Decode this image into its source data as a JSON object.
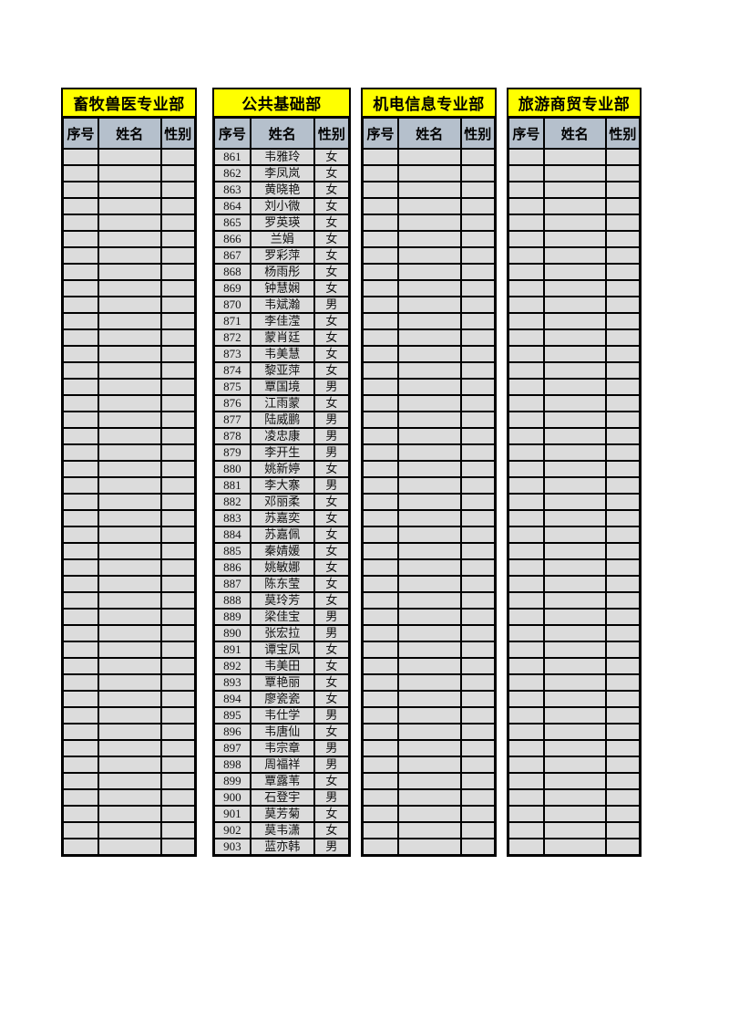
{
  "page": {
    "background": "#FFFFFF",
    "description_colors": {
      "title_bg": "#FFFF00",
      "header_bg": "#B5C0CC",
      "cell_bg": "#DCDCDC",
      "border": "#000000"
    }
  },
  "columns": [
    "序号",
    "姓名",
    "性别"
  ],
  "visible_row_slots": 43,
  "departments": [
    {
      "title": "畜牧兽医专业部",
      "rows": []
    },
    {
      "title": "公共基础部",
      "rows": [
        [
          "861",
          "韦雅玲",
          "女"
        ],
        [
          "862",
          "李凤岚",
          "女"
        ],
        [
          "863",
          "黄晓艳",
          "女"
        ],
        [
          "864",
          "刘小微",
          "女"
        ],
        [
          "865",
          "罗英瑛",
          "女"
        ],
        [
          "866",
          "兰娟",
          "女"
        ],
        [
          "867",
          "罗彩萍",
          "女"
        ],
        [
          "868",
          "杨雨彤",
          "女"
        ],
        [
          "869",
          "钟慧娴",
          "女"
        ],
        [
          "870",
          "韦斌瀚",
          "男"
        ],
        [
          "871",
          "李佳滢",
          "女"
        ],
        [
          "872",
          "蒙肖廷",
          "女"
        ],
        [
          "873",
          "韦美慧",
          "女"
        ],
        [
          "874",
          "黎亚萍",
          "女"
        ],
        [
          "875",
          "覃国境",
          "男"
        ],
        [
          "876",
          "江雨蒙",
          "女"
        ],
        [
          "877",
          "陆威鹏",
          "男"
        ],
        [
          "878",
          "凌忠康",
          "男"
        ],
        [
          "879",
          "李开生",
          "男"
        ],
        [
          "880",
          "姚新婷",
          "女"
        ],
        [
          "881",
          "李大寨",
          "男"
        ],
        [
          "882",
          "邓丽柔",
          "女"
        ],
        [
          "883",
          "苏嘉奕",
          "女"
        ],
        [
          "884",
          "苏嘉佩",
          "女"
        ],
        [
          "885",
          "秦婧媛",
          "女"
        ],
        [
          "886",
          "姚敏娜",
          "女"
        ],
        [
          "887",
          "陈东莹",
          "女"
        ],
        [
          "888",
          "莫玲芳",
          "女"
        ],
        [
          "889",
          "梁佳宝",
          "男"
        ],
        [
          "890",
          "张宏拉",
          "男"
        ],
        [
          "891",
          "谭宝凤",
          "女"
        ],
        [
          "892",
          "韦美田",
          "女"
        ],
        [
          "893",
          "覃艳丽",
          "女"
        ],
        [
          "894",
          "廖瓷瓷",
          "女"
        ],
        [
          "895",
          "韦仕学",
          "男"
        ],
        [
          "896",
          "韦唐仙",
          "女"
        ],
        [
          "897",
          "韦宗章",
          "男"
        ],
        [
          "898",
          "周福祥",
          "男"
        ],
        [
          "899",
          "覃露苇",
          "女"
        ],
        [
          "900",
          "石登宇",
          "男"
        ],
        [
          "901",
          "莫芳菊",
          "女"
        ],
        [
          "902",
          "莫韦潇",
          "女"
        ],
        [
          "903",
          "蓝亦韩",
          "男"
        ]
      ]
    },
    {
      "title": "机电信息专业部",
      "rows": []
    },
    {
      "title": "旅游商贸专业部",
      "rows": []
    }
  ]
}
